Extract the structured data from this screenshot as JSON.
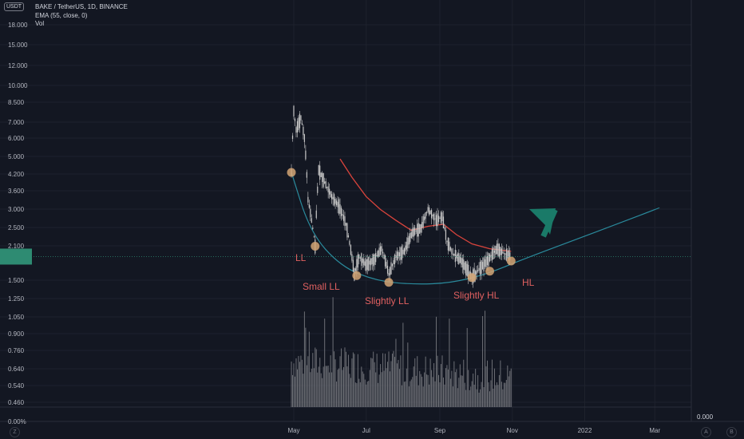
{
  "header": {
    "currency_badge": "USDT",
    "symbol_line": "BAKE / TetherUS, 1D, BINANCE",
    "ema_line": "EMA (55, close, 0)",
    "vol_line": "Vol"
  },
  "price_axis": {
    "ticks": [
      "18.000",
      "15.000",
      "12.000",
      "10.000",
      "8.500",
      "7.000",
      "6.000",
      "5.000",
      "4.200",
      "3.600",
      "3.000",
      "2.500",
      "2.100",
      "1.500",
      "1.250",
      "1.050",
      "0.900",
      "0.760",
      "0.640",
      "0.540",
      "0.460",
      "0.00%"
    ]
  },
  "time_axis": {
    "labels": [
      "May",
      "Jul",
      "Sep",
      "Nov",
      "2022",
      "Mar"
    ]
  },
  "scale_buttons": {
    "log": "A",
    "left": "Z",
    "auto": "B"
  },
  "bottom_value": "0.000",
  "annotations": [
    "LL",
    "Small LL",
    "Slightly LL",
    "Slightly HL",
    "HL"
  ],
  "colors": {
    "background": "#131722",
    "ema": "#d9443c",
    "curve": "#2a8a9c",
    "candles": "#c8c8c8",
    "volume": "#6d6f76",
    "marker": "#d4a574",
    "arrow": "#1a7a68",
    "annotation": "#e06060",
    "price_label_bg": "#2e8b72"
  },
  "chart_data": {
    "type": "line",
    "scale": "log",
    "title": "BAKE / TetherUS, 1D, BINANCE",
    "price_range": [
      0.44,
      21
    ],
    "series": [
      {
        "name": "BAKE / TetherUS",
        "points": [
          [
            "2021-04-29",
            4.3
          ],
          [
            "2021-05-01",
            7.8
          ],
          [
            "2021-05-03",
            6.5
          ],
          [
            "2021-05-07",
            7.3
          ],
          [
            "2021-05-10",
            6.0
          ],
          [
            "2021-05-13",
            3.3
          ],
          [
            "2021-05-19",
            2.1
          ],
          [
            "2021-05-22",
            4.4
          ],
          [
            "2021-05-27",
            3.9
          ],
          [
            "2021-06-02",
            3.4
          ],
          [
            "2021-06-08",
            3.1
          ],
          [
            "2021-06-14",
            2.6
          ],
          [
            "2021-06-21",
            1.6
          ],
          [
            "2021-06-25",
            1.9
          ],
          [
            "2021-07-01",
            1.75
          ],
          [
            "2021-07-08",
            1.85
          ],
          [
            "2021-07-14",
            2.05
          ],
          [
            "2021-07-20",
            1.6
          ],
          [
            "2021-07-26",
            1.9
          ],
          [
            "2021-08-02",
            2.0
          ],
          [
            "2021-08-09",
            2.4
          ],
          [
            "2021-08-16",
            2.5
          ],
          [
            "2021-08-22",
            3.0
          ],
          [
            "2021-08-29",
            2.7
          ],
          [
            "2021-09-03",
            2.8
          ],
          [
            "2021-09-07",
            2.2
          ],
          [
            "2021-09-12",
            1.95
          ],
          [
            "2021-09-18",
            1.85
          ],
          [
            "2021-09-23",
            1.7
          ],
          [
            "2021-09-28",
            1.55
          ],
          [
            "2021-10-05",
            1.7
          ],
          [
            "2021-10-12",
            1.85
          ],
          [
            "2021-10-19",
            2.05
          ],
          [
            "2021-10-26",
            1.95
          ],
          [
            "2021-10-31",
            1.9
          ]
        ]
      },
      {
        "name": "EMA (55, close, 0)",
        "points": [
          [
            "2021-06-09",
            4.9
          ],
          [
            "2021-06-19",
            4.1
          ],
          [
            "2021-07-01",
            3.4
          ],
          [
            "2021-07-13",
            3.0
          ],
          [
            "2021-07-26",
            2.7
          ],
          [
            "2021-08-08",
            2.45
          ],
          [
            "2021-08-22",
            2.55
          ],
          [
            "2021-09-04",
            2.6
          ],
          [
            "2021-09-15",
            2.35
          ],
          [
            "2021-09-28",
            2.15
          ],
          [
            "2021-10-13",
            2.05
          ],
          [
            "2021-10-31",
            2.0
          ]
        ]
      }
    ],
    "volume": {
      "period": [
        "2021-04-29",
        "2021-10-31"
      ]
    },
    "markers": [
      [
        "2021-04-29",
        4.3
      ],
      [
        "2021-05-19",
        2.1
      ],
      [
        "2021-06-23",
        1.58
      ],
      [
        "2021-07-20",
        1.48
      ],
      [
        "2021-09-28",
        1.55
      ],
      [
        "2021-10-13",
        1.65
      ],
      [
        "2021-10-31",
        1.82
      ]
    ],
    "curve_path": [
      [
        "2021-04-29",
        4.3
      ],
      [
        "2021-05-15",
        2.4
      ],
      [
        "2021-06-10",
        1.72
      ],
      [
        "2021-07-10",
        1.5
      ],
      [
        "2021-08-10",
        1.45
      ],
      [
        "2021-09-10",
        1.47
      ],
      [
        "2021-10-10",
        1.6
      ],
      [
        "2021-11-10",
        1.85
      ],
      [
        "2021-12-20",
        2.2
      ],
      [
        "2022-02-01",
        2.65
      ],
      [
        "2022-03-05",
        3.05
      ]
    ],
    "current_price_level": 1.9,
    "current_price_label": "1.9xx"
  }
}
